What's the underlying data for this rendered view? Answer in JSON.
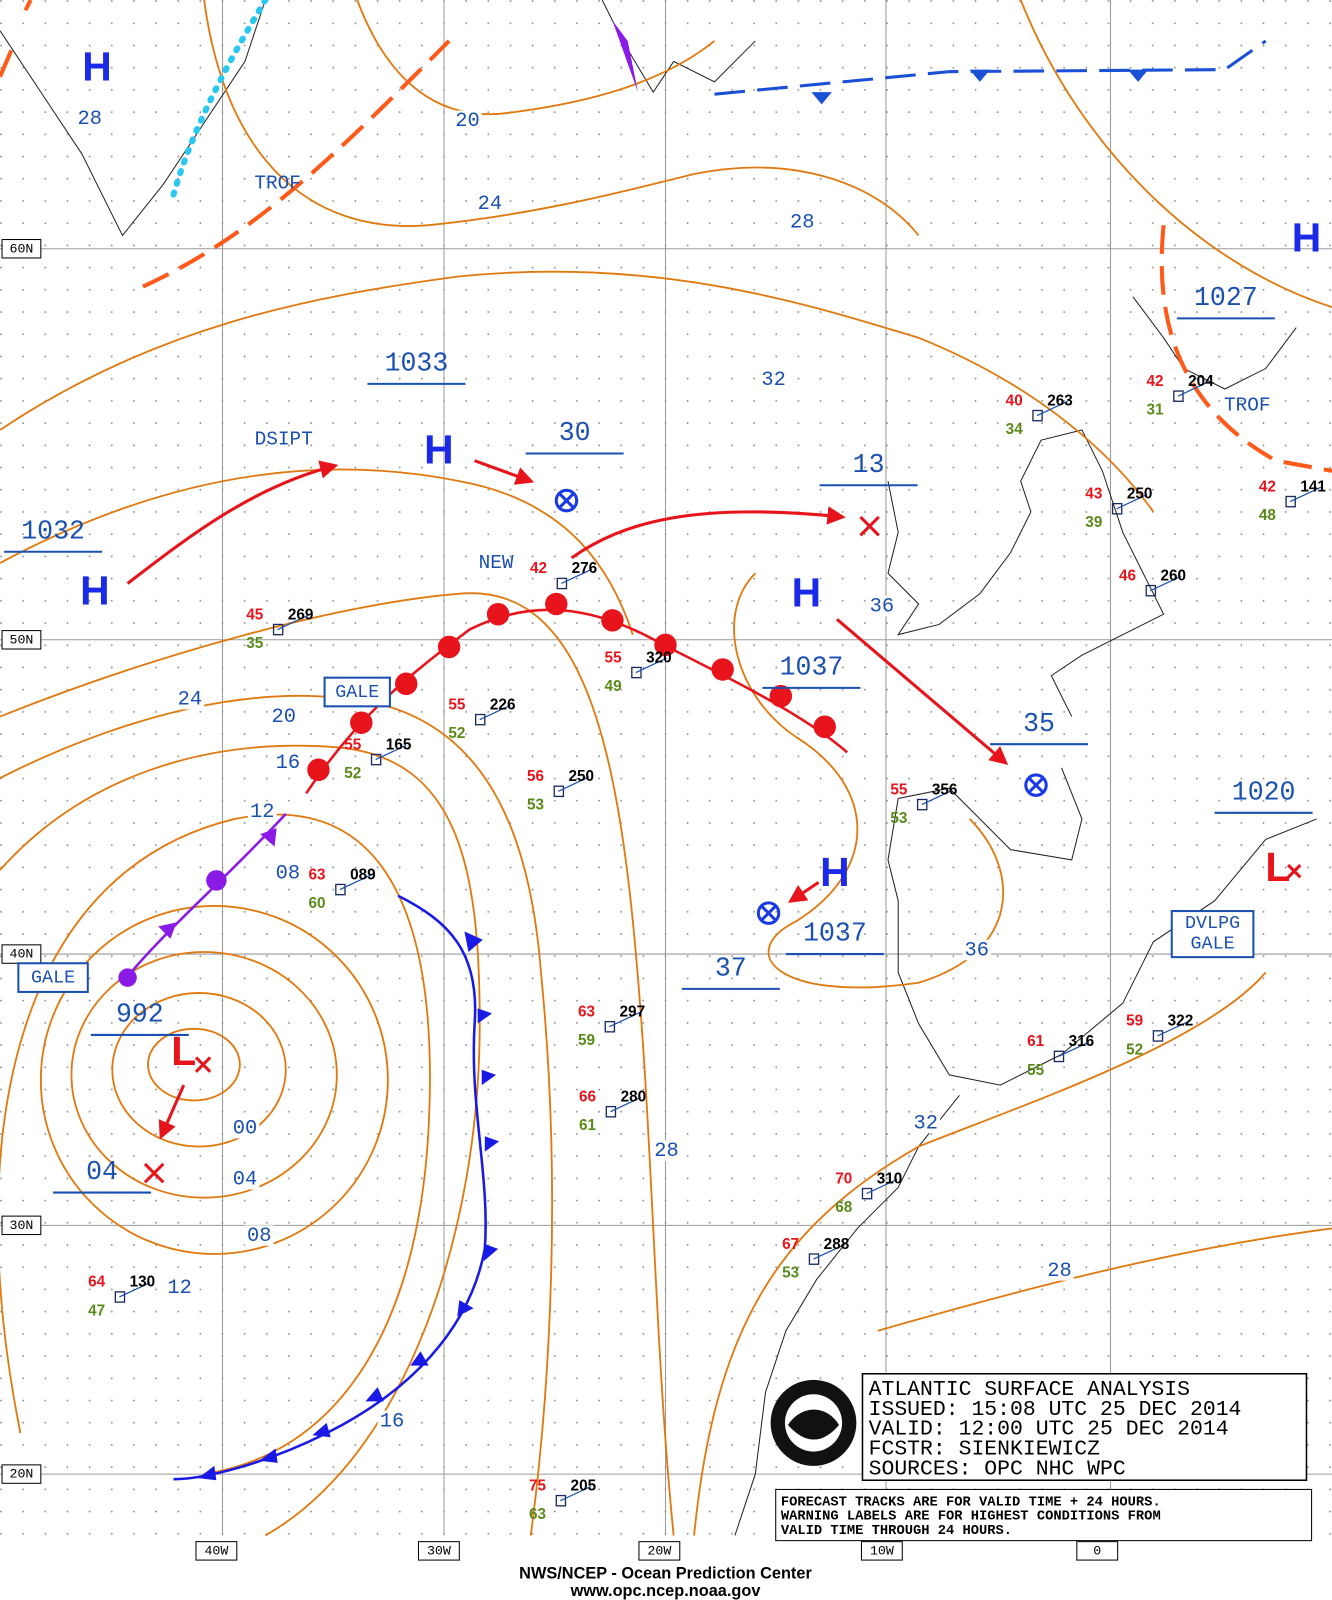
{
  "header": {
    "lines": [
      "ATLANTIC SURFACE ANALYSIS",
      "ISSUED: 15:08 UTC 25 DEC 2014",
      "VALID:  12:00 UTC 25 DEC 2014",
      "FCSTR:  SIENKIEWICZ",
      "SOURCES:  OPC NHC WPC"
    ]
  },
  "notes": [
    "FORECAST TRACKS ARE FOR VALID TIME + 24 HOURS.",
    "WARNING LABELS ARE FOR HIGHEST CONDITIONS FROM",
    "VALID TIME THROUGH 24 HOURS."
  ],
  "footer": [
    "NWS/NCEP - Ocean Prediction Center",
    "www.opc.ncep.noaa.gov"
  ],
  "lat_labels": [
    "60N",
    "50N",
    "40N",
    "30N",
    "20N"
  ],
  "lon_labels": [
    "40W",
    "30W",
    "20W",
    "10W",
    "0"
  ],
  "centers": [
    "H",
    "H",
    "H",
    "H",
    "H",
    "H",
    "L",
    "L"
  ],
  "pressures": [
    "1033",
    "30",
    "1032",
    "13",
    "1037",
    "35",
    "1020",
    "1037",
    "37",
    "992",
    "04",
    "1027"
  ],
  "isobar_labels": [
    "28",
    "20",
    "24",
    "28",
    "32",
    "36",
    "24",
    "20",
    "16",
    "12",
    "08",
    "00",
    "04",
    "08",
    "12",
    "16",
    "28",
    "32",
    "36",
    "28"
  ],
  "annotations": [
    "TROF",
    "DSIPT",
    "NEW",
    "TROF"
  ],
  "warnings": [
    "GALE",
    "GALE",
    "DVLPG",
    "GALE"
  ],
  "stations": [
    {
      "temp": "45",
      "dew": "35",
      "pres": "269"
    },
    {
      "temp": "55",
      "dew": "52",
      "pres": "165"
    },
    {
      "temp": "55",
      "dew": "52",
      "pres": "226"
    },
    {
      "temp": "42",
      "pres": "276"
    },
    {
      "temp": "56",
      "dew": "53",
      "pres": "250"
    },
    {
      "temp": "55",
      "dew": "49",
      "pres": "320"
    },
    {
      "temp": "63",
      "dew": "59",
      "pres": "297"
    },
    {
      "temp": "66",
      "dew": "61",
      "pres": "280"
    },
    {
      "temp": "64",
      "dew": "47",
      "pres": "130"
    },
    {
      "temp": "75",
      "dew": "63",
      "pres": "205"
    },
    {
      "temp": "55",
      "dew": "53",
      "pres": "356"
    },
    {
      "temp": "61",
      "dew": "55",
      "pres": "316"
    },
    {
      "temp": "59",
      "dew": "52",
      "pres": "322"
    },
    {
      "temp": "40",
      "dew": "34",
      "pres": "263"
    },
    {
      "temp": "43",
      "dew": "39",
      "pres": "250"
    },
    {
      "temp": "46",
      "pres": "260"
    },
    {
      "temp": "42",
      "dew": "31",
      "pres": "204"
    },
    {
      "temp": "42",
      "dew": "48",
      "pres": "141"
    },
    {
      "temp": "67",
      "dew": "53",
      "pres": "288"
    },
    {
      "temp": "70",
      "dew": "68",
      "pres": "310"
    },
    {
      "temp": "63",
      "dew": "60",
      "pres": "089"
    }
  ]
}
